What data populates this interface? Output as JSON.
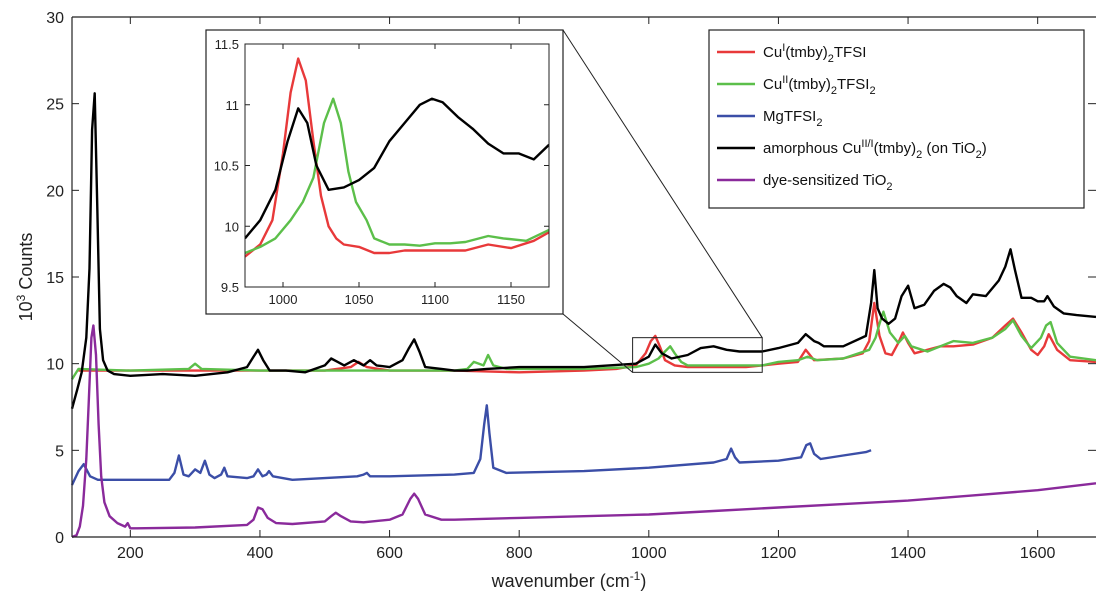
{
  "chart_data": [
    {
      "type": "line",
      "id": "main",
      "xlabel": "wavenumber (cm-1)",
      "xlabel_parts": {
        "base": "wavenumber (cm",
        "sup": "-1",
        "tail": ")"
      },
      "ylabel": "10^3 Counts",
      "ylabel_parts": {
        "base": "10",
        "sup": "3",
        "tail": " Counts"
      },
      "xlim": [
        110,
        1690
      ],
      "ylim": [
        0,
        30
      ],
      "xticks": [
        200,
        400,
        600,
        800,
        1000,
        1200,
        1400,
        1600
      ],
      "yticks": [
        0,
        5,
        10,
        15,
        20,
        25,
        30
      ],
      "grid": false,
      "legend_position": "top-right",
      "series": [
        {
          "name": "CuI(tmby)2TFSI",
          "legend": [
            [
              "Cu",
              ""
            ],
            [
              "I",
              "sup"
            ],
            [
              "(tmby)",
              ""
            ],
            [
              "2",
              "sub"
            ],
            [
              "TFSI",
              ""
            ]
          ],
          "color": "#e8393a",
          "x": [
            120,
            200,
            250,
            300,
            400,
            500,
            540,
            552,
            565,
            600,
            700,
            800,
            900,
            950,
            980,
            995,
            1003,
            1010,
            1017,
            1025,
            1040,
            1060,
            1100,
            1150,
            1175,
            1200,
            1230,
            1242,
            1255,
            1300,
            1330,
            1340,
            1348,
            1356,
            1365,
            1375,
            1385,
            1392,
            1400,
            1410,
            1430,
            1450,
            1470,
            1500,
            1530,
            1550,
            1562,
            1575,
            1590,
            1600,
            1610,
            1617,
            1630,
            1650,
            1690
          ],
          "y": [
            9.6,
            9.6,
            9.6,
            9.6,
            9.6,
            9.6,
            9.8,
            10.1,
            9.8,
            9.6,
            9.6,
            9.5,
            9.6,
            9.7,
            9.9,
            10.6,
            11.3,
            11.6,
            11.0,
            10.2,
            9.9,
            9.8,
            9.8,
            9.8,
            9.9,
            10.0,
            10.1,
            10.8,
            10.2,
            10.3,
            10.6,
            11.3,
            13.5,
            11.6,
            10.6,
            10.5,
            11.2,
            11.8,
            11.2,
            10.6,
            10.8,
            11.0,
            11.0,
            11.1,
            11.5,
            12.2,
            12.6,
            11.8,
            10.8,
            10.5,
            11.0,
            11.7,
            10.8,
            10.2,
            10.1
          ]
        },
        {
          "name": "CuII(tmby)2TFSI2",
          "legend": [
            [
              "Cu",
              ""
            ],
            [
              "II",
              "sup"
            ],
            [
              "(tmby)",
              ""
            ],
            [
              "2",
              "sub"
            ],
            [
              "TFSI",
              ""
            ],
            [
              "2",
              "sub"
            ]
          ],
          "color": "#5cbf4a",
          "x": [
            110,
            120,
            200,
            290,
            300,
            310,
            400,
            500,
            600,
            700,
            720,
            730,
            745,
            752,
            760,
            780,
            900,
            980,
            1000,
            1015,
            1025,
            1033,
            1040,
            1050,
            1060,
            1100,
            1150,
            1175,
            1200,
            1230,
            1245,
            1260,
            1300,
            1340,
            1350,
            1356,
            1362,
            1372,
            1385,
            1395,
            1405,
            1430,
            1450,
            1470,
            1500,
            1530,
            1550,
            1562,
            1575,
            1590,
            1605,
            1613,
            1620,
            1630,
            1650,
            1690
          ],
          "y": [
            9.1,
            9.7,
            9.6,
            9.7,
            10.0,
            9.7,
            9.6,
            9.6,
            9.6,
            9.6,
            9.7,
            10.1,
            9.9,
            10.5,
            9.9,
            9.7,
            9.7,
            9.8,
            10.0,
            10.3,
            10.7,
            11.0,
            10.6,
            10.1,
            9.9,
            9.9,
            9.9,
            9.9,
            10.1,
            10.2,
            10.4,
            10.2,
            10.3,
            10.8,
            11.5,
            12.3,
            13.0,
            11.8,
            11.2,
            11.6,
            11.0,
            10.7,
            11.0,
            11.3,
            11.2,
            11.5,
            12.0,
            12.5,
            11.6,
            10.9,
            11.5,
            12.2,
            12.4,
            11.2,
            10.4,
            10.2
          ]
        },
        {
          "name": "MgTFSI2",
          "legend": [
            [
              "MgTFSI",
              ""
            ],
            [
              "2",
              "sub"
            ]
          ],
          "color": "#3b4ea7",
          "x": [
            110,
            120,
            128,
            138,
            150,
            200,
            260,
            268,
            275,
            282,
            290,
            300,
            308,
            315,
            322,
            330,
            340,
            345,
            350,
            380,
            390,
            397,
            404,
            410,
            414,
            420,
            450,
            500,
            550,
            560,
            565,
            570,
            600,
            700,
            730,
            740,
            746,
            750,
            754,
            760,
            780,
            900,
            1000,
            1100,
            1120,
            1127,
            1133,
            1140,
            1200,
            1235,
            1243,
            1249,
            1255,
            1265,
            1300,
            1335,
            1343
          ],
          "y": [
            3.0,
            3.8,
            4.2,
            3.5,
            3.3,
            3.3,
            3.3,
            3.7,
            4.7,
            3.6,
            3.5,
            3.9,
            3.7,
            4.4,
            3.6,
            3.4,
            3.6,
            4.0,
            3.5,
            3.4,
            3.5,
            3.9,
            3.5,
            3.6,
            3.8,
            3.5,
            3.3,
            3.4,
            3.5,
            3.6,
            3.7,
            3.5,
            3.5,
            3.6,
            3.7,
            4.5,
            6.5,
            7.6,
            6.0,
            4.0,
            3.7,
            3.8,
            4.0,
            4.3,
            4.5,
            5.1,
            4.6,
            4.3,
            4.4,
            4.6,
            5.3,
            5.4,
            4.8,
            4.5,
            4.7,
            4.9,
            5.0
          ]
        },
        {
          "name": "amorphous CuII/I(tmby)2 (on TiO2)",
          "legend": [
            [
              "amorphous Cu",
              ""
            ],
            [
              "II/I",
              "sup"
            ],
            [
              "(tmby)",
              ""
            ],
            [
              "2",
              "sub"
            ],
            [
              " (on TiO",
              ""
            ],
            [
              "2",
              "sub"
            ],
            [
              ")",
              ""
            ]
          ],
          "color": "#000000",
          "x": [
            110,
            118,
            125,
            132,
            137,
            141,
            145,
            149,
            153,
            158,
            165,
            175,
            200,
            250,
            300,
            350,
            380,
            390,
            397,
            405,
            415,
            440,
            470,
            500,
            510,
            520,
            530,
            545,
            560,
            570,
            580,
            600,
            620,
            630,
            638,
            646,
            655,
            680,
            700,
            720,
            750,
            800,
            900,
            980,
            1000,
            1010,
            1020,
            1035,
            1060,
            1080,
            1100,
            1120,
            1140,
            1175,
            1200,
            1230,
            1242,
            1255,
            1262,
            1270,
            1300,
            1335,
            1343,
            1348,
            1353,
            1360,
            1370,
            1380,
            1390,
            1400,
            1410,
            1425,
            1440,
            1455,
            1465,
            1475,
            1490,
            1500,
            1520,
            1540,
            1550,
            1558,
            1565,
            1575,
            1590,
            1600,
            1610,
            1615,
            1625,
            1640,
            1660,
            1690
          ],
          "y": [
            7.4,
            8.5,
            9.5,
            11.5,
            15.5,
            23.5,
            25.6,
            19.0,
            12.0,
            10.2,
            9.6,
            9.4,
            9.3,
            9.4,
            9.3,
            9.5,
            9.8,
            10.4,
            10.8,
            10.2,
            9.6,
            9.6,
            9.5,
            9.9,
            10.3,
            10.1,
            9.9,
            10.2,
            9.9,
            10.2,
            9.9,
            9.8,
            10.2,
            10.9,
            11.4,
            10.7,
            9.8,
            9.7,
            9.6,
            9.6,
            9.7,
            9.8,
            9.8,
            10.0,
            10.4,
            11.1,
            10.6,
            10.3,
            10.5,
            10.9,
            11.0,
            10.8,
            10.7,
            10.7,
            10.9,
            11.2,
            11.7,
            11.3,
            11.2,
            11.0,
            11.0,
            11.6,
            13.5,
            15.4,
            13.2,
            12.6,
            12.3,
            12.6,
            13.9,
            14.5,
            13.2,
            13.4,
            14.2,
            14.6,
            14.4,
            13.9,
            13.5,
            14.0,
            13.9,
            14.8,
            15.6,
            16.6,
            15.4,
            13.8,
            13.8,
            13.6,
            13.6,
            13.9,
            13.3,
            12.9,
            12.8,
            12.7
          ]
        },
        {
          "name": "dye-sensitized TiO2",
          "legend": [
            [
              "dye-sensitized TiO",
              ""
            ],
            [
              "2",
              "sub"
            ]
          ],
          "color": "#8a2a9b",
          "x": [
            110,
            117,
            122,
            127,
            132,
            136,
            140,
            143,
            147,
            151,
            155,
            160,
            168,
            180,
            192,
            196,
            200,
            210,
            300,
            380,
            390,
            397,
            404,
            412,
            425,
            450,
            500,
            510,
            517,
            525,
            540,
            560,
            600,
            620,
            632,
            638,
            644,
            655,
            680,
            700,
            800,
            900,
            1000,
            1100,
            1200,
            1300,
            1400,
            1500,
            1600,
            1690
          ],
          "y": [
            0.0,
            0.1,
            0.6,
            1.8,
            4.5,
            8.0,
            11.5,
            12.2,
            10.5,
            6.5,
            3.5,
            2.0,
            1.2,
            0.8,
            0.6,
            0.8,
            0.5,
            0.5,
            0.55,
            0.7,
            1.0,
            1.7,
            1.6,
            1.1,
            0.8,
            0.75,
            0.9,
            1.2,
            1.4,
            1.2,
            0.9,
            0.85,
            1.0,
            1.3,
            2.2,
            2.5,
            2.2,
            1.3,
            1.0,
            1.0,
            1.1,
            1.2,
            1.3,
            1.5,
            1.7,
            1.9,
            2.1,
            2.4,
            2.7,
            3.1
          ]
        }
      ]
    },
    {
      "type": "line",
      "id": "inset",
      "xlim": [
        975,
        1175
      ],
      "ylim": [
        9.5,
        11.5
      ],
      "xticks": [
        1000,
        1050,
        1100,
        1150
      ],
      "yticks": [
        9.5,
        10,
        10.5,
        11,
        11.5
      ],
      "zoom_region": {
        "x": [
          975,
          1175
        ],
        "y": [
          9.5,
          11.5
        ]
      },
      "series": [
        {
          "name": "CuI(tmby)2TFSI",
          "color": "#e8393a",
          "x": [
            975,
            985,
            993,
            1000,
            1005,
            1010,
            1015,
            1020,
            1025,
            1030,
            1035,
            1040,
            1050,
            1060,
            1070,
            1080,
            1100,
            1120,
            1135,
            1150,
            1165,
            1175
          ],
          "y": [
            9.75,
            9.85,
            10.05,
            10.6,
            11.1,
            11.38,
            11.2,
            10.7,
            10.25,
            10.0,
            9.9,
            9.85,
            9.83,
            9.78,
            9.78,
            9.8,
            9.8,
            9.8,
            9.85,
            9.82,
            9.88,
            9.95
          ]
        },
        {
          "name": "CuII(tmby)2TFSI2",
          "color": "#5cbf4a",
          "x": [
            975,
            985,
            995,
            1005,
            1013,
            1020,
            1027,
            1033,
            1038,
            1043,
            1048,
            1055,
            1060,
            1070,
            1080,
            1090,
            1100,
            1110,
            1120,
            1135,
            1145,
            1160,
            1175
          ],
          "y": [
            9.78,
            9.83,
            9.9,
            10.05,
            10.2,
            10.4,
            10.85,
            11.05,
            10.85,
            10.45,
            10.2,
            10.05,
            9.9,
            9.85,
            9.85,
            9.84,
            9.86,
            9.86,
            9.87,
            9.92,
            9.9,
            9.88,
            9.97
          ]
        },
        {
          "name": "amorphous CuII/I(tmby)2 (on TiO2)",
          "color": "#000000",
          "x": [
            975,
            985,
            995,
            1003,
            1010,
            1016,
            1022,
            1030,
            1040,
            1050,
            1060,
            1070,
            1080,
            1090,
            1098,
            1105,
            1115,
            1125,
            1135,
            1145,
            1155,
            1165,
            1175
          ],
          "y": [
            9.9,
            10.05,
            10.3,
            10.7,
            10.97,
            10.85,
            10.5,
            10.3,
            10.32,
            10.38,
            10.48,
            10.7,
            10.85,
            11.0,
            11.05,
            11.02,
            10.9,
            10.8,
            10.68,
            10.6,
            10.6,
            10.55,
            10.67
          ]
        }
      ]
    }
  ]
}
